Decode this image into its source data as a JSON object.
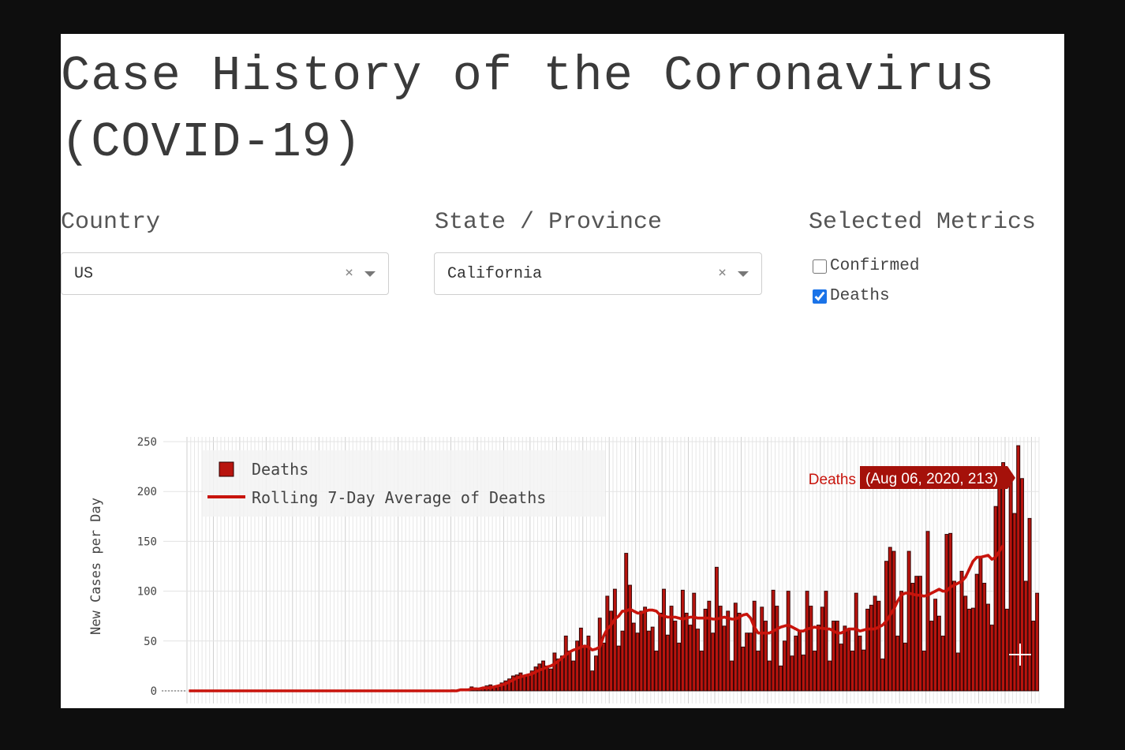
{
  "header": {
    "title": "Case History of the Coronavirus (COVID-19)"
  },
  "controls": {
    "country": {
      "label": "Country",
      "value": "US",
      "clear_icon": "×"
    },
    "state": {
      "label": "State / Province",
      "value": "California",
      "clear_icon": "×"
    },
    "metrics": {
      "label": "Selected Metrics",
      "options": [
        {
          "label": "Confirmed",
          "checked": false
        },
        {
          "label": "Deaths",
          "checked": true
        }
      ]
    }
  },
  "chart_data": {
    "type": "bar",
    "ylabel": "New Cases per Day",
    "xlabel": "",
    "ylim": [
      0,
      250
    ],
    "yticks": [
      0,
      50,
      100,
      150,
      200,
      250
    ],
    "grid": true,
    "legend_position": "top-left",
    "colors": {
      "bar": "#b8140e",
      "bar_edge": "#2a0000",
      "line": "#c8140c",
      "hover_bg": "#a5110a"
    },
    "tooltip": {
      "series": "Deaths",
      "text": "(Aug 06, 2020, 213)"
    },
    "series": [
      {
        "name": "Deaths",
        "kind": "bar",
        "values": [
          0,
          0,
          0,
          0,
          0,
          0,
          0,
          0,
          0,
          0,
          0,
          0,
          0,
          0,
          0,
          0,
          0,
          0,
          0,
          0,
          0,
          0,
          0,
          0,
          0,
          0,
          0,
          0,
          0,
          0,
          0,
          0,
          0,
          0,
          0,
          0,
          0,
          0,
          0,
          0,
          0,
          0,
          0,
          0,
          0,
          0,
          0,
          0,
          0,
          0,
          0,
          0,
          0,
          0,
          0,
          0,
          0,
          0,
          0,
          0,
          0,
          0,
          0,
          0,
          0,
          0,
          0,
          0,
          0,
          0,
          1,
          0,
          1,
          1,
          2,
          4,
          3,
          2,
          2,
          5,
          6,
          3,
          4,
          8,
          10,
          12,
          15,
          16,
          18,
          15,
          16,
          20,
          24,
          27,
          30,
          25,
          22,
          38,
          32,
          35,
          55,
          40,
          30,
          50,
          63,
          45,
          55,
          20,
          35,
          73,
          48,
          95,
          80,
          102,
          45,
          60,
          138,
          106,
          68,
          58,
          80,
          84,
          60,
          64,
          40,
          78,
          102,
          56,
          85,
          70,
          48,
          101,
          78,
          66,
          98,
          62,
          40,
          82,
          90,
          58,
          124,
          85,
          65,
          80,
          30,
          88,
          78,
          44,
          58,
          58,
          90,
          40,
          84,
          70,
          30,
          101,
          85,
          25,
          50,
          100,
          35,
          55,
          60,
          36,
          100,
          85,
          40,
          66,
          84,
          100,
          30,
          70,
          70,
          47,
          65,
          62,
          40,
          98,
          55,
          41,
          82,
          86,
          95,
          90,
          32,
          130,
          144,
          140,
          55,
          100,
          48,
          140,
          108,
          115,
          115,
          40,
          160,
          70,
          92,
          75,
          55,
          157,
          158,
          110,
          38,
          120,
          95,
          82,
          83,
          117,
          135,
          108,
          87,
          66,
          185,
          224,
          229,
          82,
          212,
          178,
          246,
          213,
          110,
          173,
          70,
          98
        ]
      },
      {
        "name": "Rolling 7-Day Average of Deaths",
        "kind": "line",
        "values": [
          0,
          0,
          0,
          0,
          0,
          0,
          0,
          0,
          0,
          0,
          0,
          0,
          0,
          0,
          0,
          0,
          0,
          0,
          0,
          0,
          0,
          0,
          0,
          0,
          0,
          0,
          0,
          0,
          0,
          0,
          0,
          0,
          0,
          0,
          0,
          0,
          0,
          0,
          0,
          0,
          0,
          0,
          0,
          0,
          0,
          0,
          0,
          0,
          0,
          0,
          0,
          0,
          0,
          0,
          0,
          0,
          0,
          0,
          0,
          0,
          0,
          0,
          0,
          0,
          0,
          0,
          0,
          0,
          0,
          0,
          0,
          0,
          1,
          1,
          1,
          2,
          2,
          2,
          3,
          3,
          3,
          4,
          5,
          6,
          7,
          9,
          11,
          13,
          14,
          15,
          16,
          17,
          19,
          21,
          22,
          24,
          25,
          27,
          30,
          33,
          36,
          39,
          41,
          42,
          44,
          45,
          44,
          41,
          42,
          44,
          55,
          62,
          66,
          72,
          75,
          80,
          80,
          82,
          80,
          78,
          78,
          80,
          81,
          81,
          80,
          76,
          75,
          74,
          74,
          74,
          73,
          72,
          73,
          74,
          74,
          73,
          73,
          73,
          73,
          72,
          72,
          73,
          74,
          73,
          72,
          72,
          74,
          76,
          77,
          73,
          64,
          58,
          58,
          58,
          58,
          60,
          62,
          64,
          65,
          66,
          64,
          62,
          60,
          60,
          62,
          63,
          64,
          63,
          63,
          62,
          62,
          60,
          58,
          58,
          60,
          62,
          62,
          62,
          60,
          61,
          62,
          62,
          62,
          64,
          66,
          70,
          76,
          82,
          90,
          96,
          98,
          98,
          97,
          96,
          96,
          95,
          96,
          98,
          100,
          102,
          100,
          100,
          104,
          106,
          108,
          110,
          114,
          122,
          130,
          134,
          134,
          135,
          136,
          132,
          134,
          140,
          146
        ]
      }
    ]
  }
}
